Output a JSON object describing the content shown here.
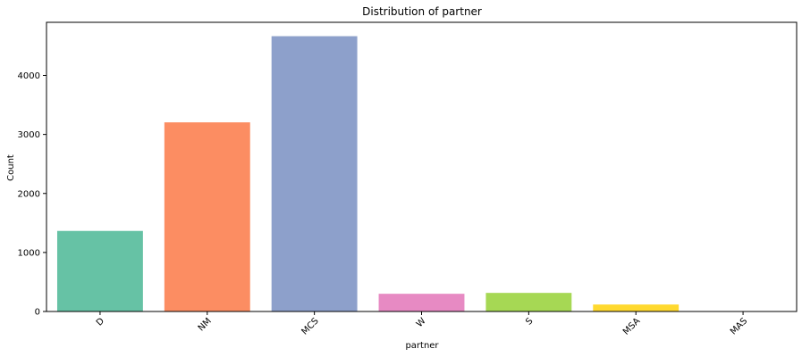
{
  "chart_data": {
    "type": "bar",
    "title": "Distribution of partner",
    "xlabel": "partner",
    "ylabel": "Count",
    "categories": [
      "D",
      "NM",
      "MCS",
      "W",
      "S",
      "MSA",
      "MAS"
    ],
    "values": [
      1365,
      3205,
      4665,
      300,
      315,
      118,
      5
    ],
    "colors": [
      "#66c2a5",
      "#fc8d62",
      "#8da0cb",
      "#e78ac3",
      "#a6d854",
      "#ffd92f",
      "#e5c494"
    ],
    "ylim": [
      0,
      4900
    ],
    "yticks": [
      0,
      1000,
      2000,
      3000,
      4000
    ],
    "grid": false,
    "xtick_rotation": 45
  }
}
